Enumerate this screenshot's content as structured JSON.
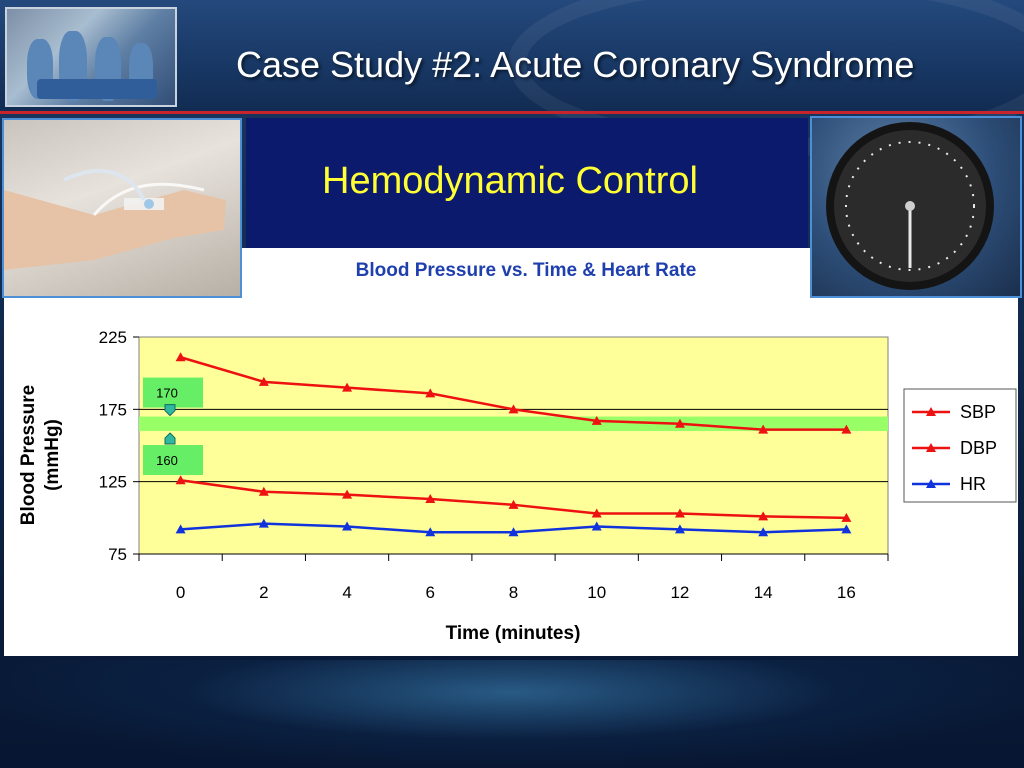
{
  "slide": {
    "title": "Case Study #2: Acute Coronary Syndrome",
    "section_title": "Hemodynamic Control",
    "chart_subtitle": "Blood Pressure vs. Time & Heart Rate"
  },
  "colors": {
    "title_yellow": "#ffff33",
    "panel_navy": "#0c1a6e",
    "subtitle_blue": "#1f3fae",
    "plot_bg": "#ffff99",
    "target_band": "#99ff66",
    "accent_red": "#c8242b"
  },
  "chart_data": {
    "type": "line",
    "title": "Blood Pressure vs. Time & Heart Rate",
    "xlabel": "Time (minutes)",
    "ylabel": "Blood Pressure (mmHg)",
    "ylabel_lines": [
      "Blood Pressure",
      "(mmHg)"
    ],
    "x": [
      0,
      2,
      4,
      6,
      8,
      10,
      12,
      14,
      16
    ],
    "xlim": [
      -1,
      17
    ],
    "ylim": [
      75,
      225
    ],
    "yticks": [
      75,
      125,
      175,
      225
    ],
    "grid": "horizontal",
    "legend": "right",
    "target_band": {
      "low": 160,
      "high": 170,
      "color": "#99ff66"
    },
    "annotations": [
      {
        "label": "170",
        "value": 170,
        "direction": "down"
      },
      {
        "label": "160",
        "value": 160,
        "direction": "up"
      }
    ],
    "series": [
      {
        "name": "SBP",
        "color": "#ee1111",
        "values": [
          211,
          194,
          190,
          186,
          175,
          167,
          165,
          161,
          161
        ]
      },
      {
        "name": "DBP",
        "color": "#ee1111",
        "values": [
          126,
          118,
          116,
          113,
          109,
          103,
          103,
          101,
          100
        ]
      },
      {
        "name": "HR",
        "color": "#1133dd",
        "values": [
          92,
          96,
          94,
          90,
          90,
          94,
          92,
          90,
          92
        ]
      }
    ]
  }
}
